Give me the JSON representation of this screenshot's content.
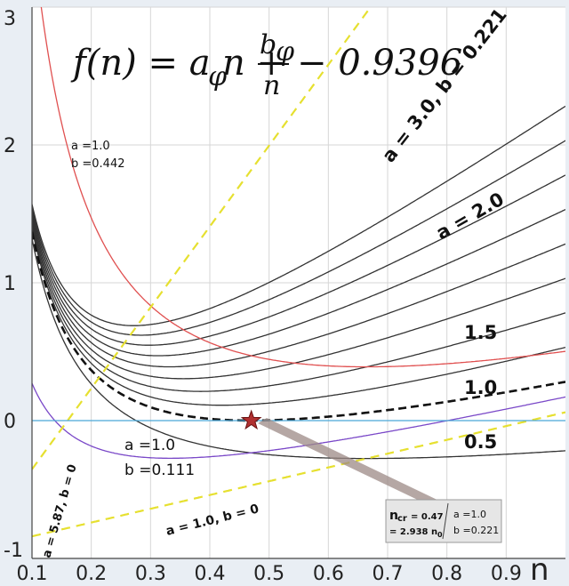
{
  "chart_data": {
    "type": "line",
    "title": "",
    "xlabel": "n",
    "ylabel": "",
    "xlim": [
      0.1,
      1.0
    ],
    "ylim": [
      -1,
      3
    ],
    "grid": true,
    "xticks": [
      "0.1",
      "0.2",
      "0.3",
      "0.4",
      "0.5",
      "0.6",
      "0.7",
      "0.8",
      "0.9"
    ],
    "yticks": [
      "-1",
      "0",
      "1",
      "2",
      "3"
    ],
    "formula": {
      "lhs": "f(n) = a",
      "sub_a": "φ",
      "mid": "n +",
      "num_b": "b",
      "sub_b": "φ",
      "den": "n",
      "rhs": "− 0.9396"
    },
    "offset": 0.9396,
    "series": [
      {
        "a": 3.0,
        "b": 0.221,
        "color": "#333333"
      },
      {
        "a": 2.75,
        "b": 0.221,
        "color": "#333333"
      },
      {
        "a": 2.5,
        "b": 0.221,
        "color": "#333333"
      },
      {
        "a": 2.25,
        "b": 0.221,
        "color": "#333333"
      },
      {
        "a": 2.0,
        "b": 0.221,
        "color": "#333333"
      },
      {
        "a": 1.75,
        "b": 0.221,
        "color": "#333333"
      },
      {
        "a": 1.5,
        "b": 0.221,
        "color": "#333333"
      },
      {
        "a": 1.25,
        "b": 0.221,
        "color": "#333333"
      },
      {
        "a": 1.0,
        "b": 0.221,
        "color": "#111111",
        "dashed": true
      },
      {
        "a": 0.5,
        "b": 0.221,
        "color": "#333333"
      },
      {
        "a": 1.0,
        "b": 0.442,
        "color": "#e05050"
      },
      {
        "a": 1.0,
        "b": 0.111,
        "color": "#7a48c8"
      },
      {
        "a": 5.87,
        "b": 0,
        "color": "#e6e030",
        "dashed": true
      },
      {
        "a": 1.0,
        "b": 0,
        "color": "#e6e030",
        "dashed": true
      },
      {
        "a": 0,
        "b": 0,
        "const": 0,
        "color": "#4aa8d8"
      }
    ],
    "marker": {
      "x": 0.47,
      "y": 0,
      "color": "#b03030"
    },
    "annotations": {
      "a30": "a  = 3.0, b  = 0.221",
      "a20": "a  = 2.0",
      "l15": "1.5",
      "l10": "1.0",
      "l05": "0.5",
      "red_a": "a =1.0",
      "red_b": "b =0.442",
      "purple_a": "a =1.0",
      "purple_b": "b =0.111",
      "yellow1": "a  = 1.0, b  = 0",
      "yellow2": "a  = 5.87, b  = 0",
      "ncr_main": "n",
      "ncr_sub": "cr",
      "ncr_val": "= 0.47",
      "ncr_line2": "= 2.938 n",
      "ncr_line2_sub": "0",
      "ncr_a": "a =1.0",
      "ncr_b": "b =0.221"
    }
  }
}
